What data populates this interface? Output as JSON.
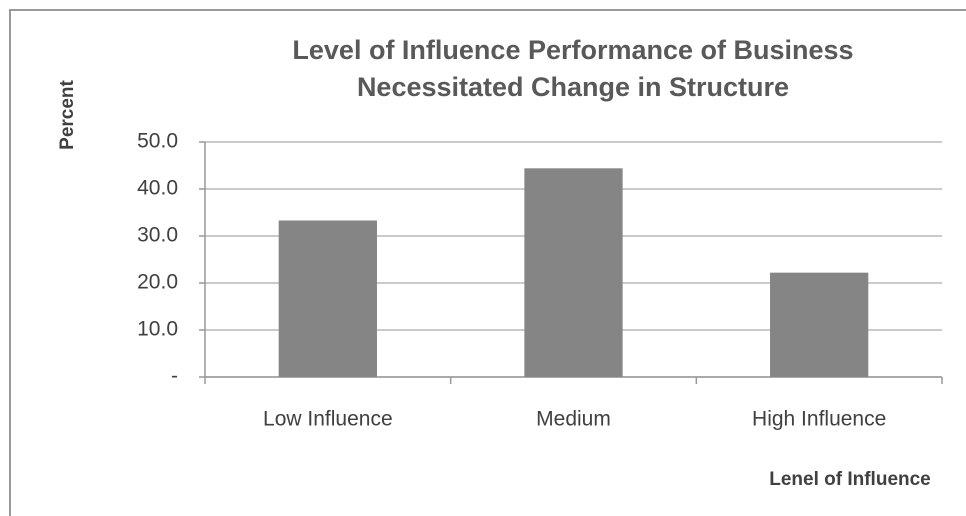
{
  "chart_data": {
    "type": "bar",
    "title": [
      "Level of Influence Performance of Business",
      "Necessitated Change in Structure"
    ],
    "y_label": "Percent",
    "x_label": "Lenel of Influence",
    "categories": [
      "Low Influence",
      "Medium",
      "High Influence"
    ],
    "values": [
      33.3,
      44.4,
      22.2
    ],
    "color": "#858585",
    "ylim": [
      0,
      50
    ],
    "yticks": [
      {
        "value": 0,
        "label": "-"
      },
      {
        "value": 10,
        "label": "10.0"
      },
      {
        "value": 20,
        "label": "20.0"
      },
      {
        "value": 30,
        "label": "30.0"
      },
      {
        "value": 40,
        "label": "40.0"
      },
      {
        "value": 50,
        "label": "50.0"
      }
    ],
    "grid": true
  }
}
